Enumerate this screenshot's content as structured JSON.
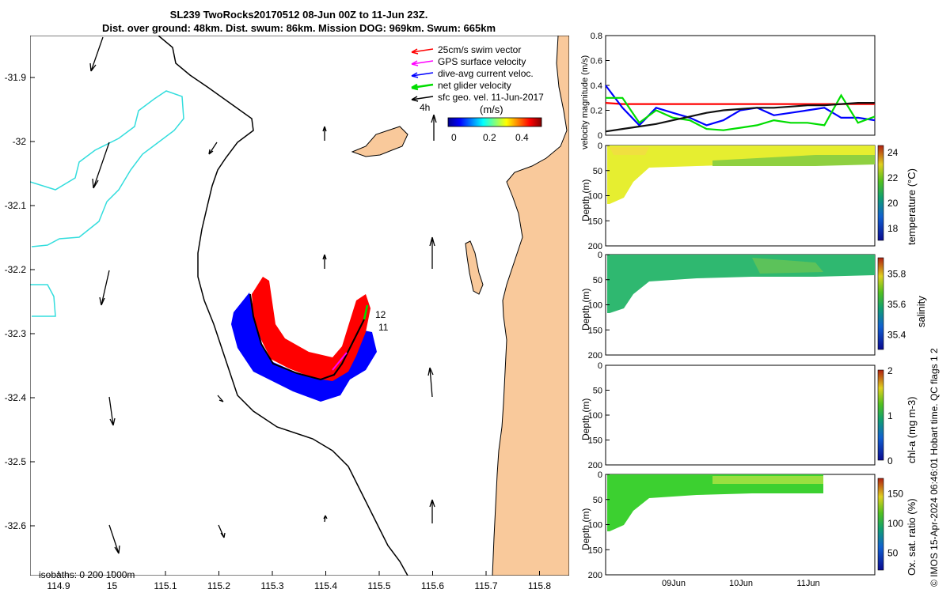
{
  "title": {
    "line1": "SL239 TwoRocks20170512 08-Jun 00Z to 11-Jun 23Z.",
    "line2": "Dist. over ground: 48km. Dist. swum: 86km. Mission DOG: 969km. Swum: 665km"
  },
  "map": {
    "x_ticks": [
      "114.9",
      "15",
      "115.1",
      "115.2",
      "115.3",
      "115.4",
      "115.5",
      "115.6",
      "115.7",
      "115.8"
    ],
    "y_ticks": [
      "-31.9",
      "-32",
      "-32.1",
      "-32.2",
      "-32.3",
      "-32.4",
      "-32.5",
      "-32.6"
    ],
    "legend": [
      {
        "label": "25cm/s swim vector",
        "color": "#ff0000"
      },
      {
        "label": "GPS surface velocity",
        "color": "#ff00ff"
      },
      {
        "label": "dive-avg current veloc.",
        "color": "#0000ff"
      },
      {
        "label": "net glider velocity",
        "color": "#00dd00"
      },
      {
        "label": "sfc geo. vel. 11-Jun-2017",
        "color": "#000000"
      }
    ],
    "colorbar_unit": "(m/s)",
    "colorbar_ticks": [
      "0",
      "0.2",
      "0.4"
    ],
    "time_label": "4h",
    "day_labels": [
      "12",
      "11"
    ],
    "isobaths_label": "isobaths: 0   200  1000m",
    "colors": {
      "land": "#f9c99b",
      "coast": "#000000",
      "isobath_200": "#000000",
      "isobath_1000": "#33dddd"
    }
  },
  "chart_data": [
    {
      "type": "line",
      "ylabel": "velocity magnitude (m/s)",
      "ylim": [
        0,
        0.8
      ],
      "y_ticks": [
        "0",
        "0.2",
        "0.4",
        "0.6",
        "0.8"
      ],
      "x": [
        0,
        0.25,
        0.5,
        0.75,
        1.0,
        1.25,
        1.5,
        1.75,
        2.0,
        2.25,
        2.5,
        2.75,
        3.0,
        3.25,
        3.5,
        3.75,
        4.0
      ],
      "series": [
        {
          "name": "swim",
          "color": "#ff0000",
          "values": [
            0.26,
            0.25,
            0.25,
            0.25,
            0.25,
            0.25,
            0.25,
            0.25,
            0.25,
            0.25,
            0.25,
            0.25,
            0.25,
            0.25,
            0.25,
            0.25,
            0.25
          ]
        },
        {
          "name": "dive-avg current",
          "color": "#0000ff",
          "values": [
            0.4,
            0.22,
            0.08,
            0.22,
            0.18,
            0.14,
            0.08,
            0.12,
            0.2,
            0.22,
            0.16,
            0.18,
            0.2,
            0.22,
            0.14,
            0.14,
            0.12
          ]
        },
        {
          "name": "net glider velocity",
          "color": "#00dd00",
          "values": [
            0.3,
            0.3,
            0.1,
            0.2,
            0.14,
            0.12,
            0.05,
            0.04,
            0.06,
            0.08,
            0.12,
            0.1,
            0.1,
            0.08,
            0.32,
            0.1,
            0.15
          ]
        },
        {
          "name": "sfc geo",
          "color": "#111111",
          "values": [
            0.03,
            0.05,
            0.07,
            0.09,
            0.12,
            0.15,
            0.18,
            0.2,
            0.21,
            0.22,
            0.22,
            0.23,
            0.24,
            0.24,
            0.25,
            0.26,
            0.26
          ]
        }
      ]
    },
    {
      "type": "heatmap",
      "ylabel": "Depth (m)",
      "ylim": [
        0,
        200
      ],
      "y_ticks": [
        "0",
        "50",
        "100",
        "150",
        "200"
      ],
      "cbar_label": "temperature (°C)",
      "cbar_ticks": [
        "24",
        "22",
        "20",
        "18"
      ],
      "clim": [
        17,
        24.5
      ]
    },
    {
      "type": "heatmap",
      "ylabel": "Depth (m)",
      "ylim": [
        0,
        200
      ],
      "y_ticks": [
        "0",
        "50",
        "100",
        "150",
        "200"
      ],
      "cbar_label": "salinity",
      "cbar_ticks": [
        "35.8",
        "35.6",
        "35.4"
      ],
      "clim": [
        35.3,
        35.9
      ]
    },
    {
      "type": "heatmap",
      "ylabel": "Depth (m)",
      "ylim": [
        0,
        200
      ],
      "y_ticks": [
        "0",
        "50",
        "100",
        "150",
        "200"
      ],
      "cbar_label": "chl-a (mg m-3)",
      "cbar_ticks": [
        "2",
        "1",
        "0"
      ],
      "clim": [
        0,
        2
      ]
    },
    {
      "type": "heatmap",
      "ylabel": "Depth (m)",
      "ylim": [
        0,
        200
      ],
      "y_ticks": [
        "0",
        "50",
        "100",
        "150",
        "200"
      ],
      "cbar_label": "Ox. sat. ratio (%)",
      "cbar_ticks": [
        "150",
        "100",
        "50"
      ],
      "clim": [
        20,
        175
      ],
      "x_ticks": [
        "09Jun",
        "10Jun",
        "11Jun"
      ]
    }
  ],
  "stamp": "© IMOS 15-Apr-2024 06:46:01 Hobart time. QC flags 1  2"
}
